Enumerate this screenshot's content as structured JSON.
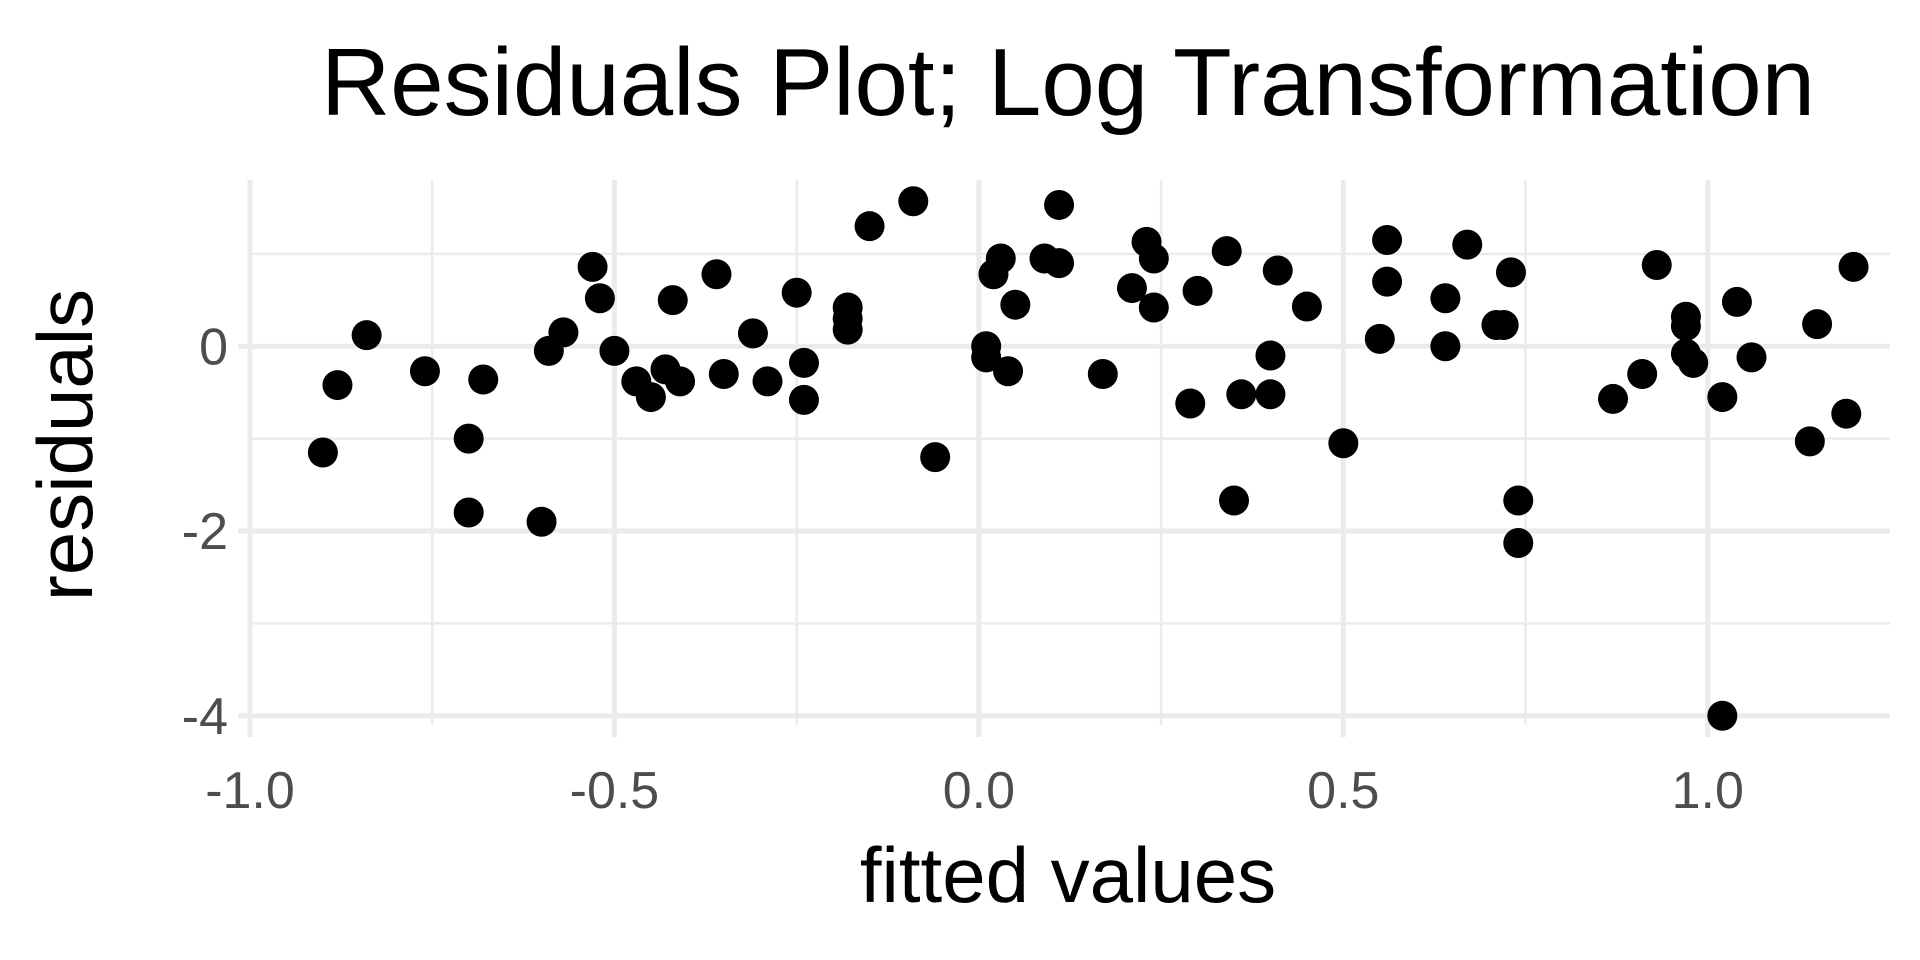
{
  "chart_data": {
    "type": "scatter",
    "title": "Residuals Plot; Log Transformation",
    "xlabel": "fitted values",
    "ylabel": "residuals",
    "xlim": [
      -1.0,
      1.25
    ],
    "ylim": [
      -4.1,
      1.8
    ],
    "x_ticks": [
      -1.0,
      -0.5,
      0.0,
      0.5,
      1.0
    ],
    "x_tick_labels": [
      "-1.0",
      "-0.5",
      "0.0",
      "0.5",
      "1.0"
    ],
    "y_ticks": [
      -4,
      -2,
      0
    ],
    "y_tick_labels": [
      "-4",
      "-2",
      "0"
    ],
    "x_minor_ticks": [
      -0.75,
      -0.25,
      0.25,
      0.75
    ],
    "y_minor_ticks": [
      -3,
      -1,
      1
    ],
    "grid": true,
    "point_color": "#000000",
    "grid_color": "#ebebeb",
    "series": [
      {
        "points": [
          {
            "x": -0.9,
            "y": -1.15
          },
          {
            "x": -0.88,
            "y": -0.42
          },
          {
            "x": -0.84,
            "y": 0.12
          },
          {
            "x": -0.76,
            "y": -0.27
          },
          {
            "x": -0.7,
            "y": -1.0
          },
          {
            "x": -0.7,
            "y": -1.8
          },
          {
            "x": -0.68,
            "y": -0.36
          },
          {
            "x": -0.6,
            "y": -1.9
          },
          {
            "x": -0.59,
            "y": -0.05
          },
          {
            "x": -0.57,
            "y": 0.15
          },
          {
            "x": -0.53,
            "y": 0.86
          },
          {
            "x": -0.52,
            "y": 0.52
          },
          {
            "x": -0.5,
            "y": -0.05
          },
          {
            "x": -0.47,
            "y": -0.38
          },
          {
            "x": -0.45,
            "y": -0.55
          },
          {
            "x": -0.43,
            "y": -0.25
          },
          {
            "x": -0.42,
            "y": 0.5
          },
          {
            "x": -0.41,
            "y": -0.38
          },
          {
            "x": -0.36,
            "y": 0.78
          },
          {
            "x": -0.35,
            "y": -0.3
          },
          {
            "x": -0.31,
            "y": 0.14
          },
          {
            "x": -0.29,
            "y": -0.38
          },
          {
            "x": -0.25,
            "y": 0.58
          },
          {
            "x": -0.24,
            "y": -0.18
          },
          {
            "x": -0.24,
            "y": -0.58
          },
          {
            "x": -0.18,
            "y": 0.42
          },
          {
            "x": -0.18,
            "y": 0.3
          },
          {
            "x": -0.18,
            "y": 0.18
          },
          {
            "x": -0.15,
            "y": 1.3
          },
          {
            "x": -0.09,
            "y": 1.57
          },
          {
            "x": -0.06,
            "y": -1.2
          },
          {
            "x": 0.01,
            "y": 0.0
          },
          {
            "x": 0.01,
            "y": -0.12
          },
          {
            "x": 0.02,
            "y": 0.78
          },
          {
            "x": 0.03,
            "y": 0.95
          },
          {
            "x": 0.04,
            "y": -0.27
          },
          {
            "x": 0.05,
            "y": 0.45
          },
          {
            "x": 0.09,
            "y": 0.95
          },
          {
            "x": 0.11,
            "y": 0.9
          },
          {
            "x": 0.11,
            "y": 1.53
          },
          {
            "x": 0.17,
            "y": -0.3
          },
          {
            "x": 0.21,
            "y": 0.63
          },
          {
            "x": 0.23,
            "y": 1.13
          },
          {
            "x": 0.24,
            "y": 0.95
          },
          {
            "x": 0.24,
            "y": 0.42
          },
          {
            "x": 0.29,
            "y": -0.62
          },
          {
            "x": 0.3,
            "y": 0.6
          },
          {
            "x": 0.34,
            "y": 1.03
          },
          {
            "x": 0.35,
            "y": -1.67
          },
          {
            "x": 0.36,
            "y": -0.52
          },
          {
            "x": 0.4,
            "y": -0.52
          },
          {
            "x": 0.4,
            "y": -0.1
          },
          {
            "x": 0.41,
            "y": 0.82
          },
          {
            "x": 0.45,
            "y": 0.43
          },
          {
            "x": 0.5,
            "y": -1.05
          },
          {
            "x": 0.55,
            "y": 0.08
          },
          {
            "x": 0.56,
            "y": 1.15
          },
          {
            "x": 0.56,
            "y": 0.7
          },
          {
            "x": 0.64,
            "y": 0.52
          },
          {
            "x": 0.64,
            "y": 0.0
          },
          {
            "x": 0.67,
            "y": 1.1
          },
          {
            "x": 0.71,
            "y": 0.23
          },
          {
            "x": 0.72,
            "y": 0.23
          },
          {
            "x": 0.73,
            "y": 0.8
          },
          {
            "x": 0.74,
            "y": -1.67
          },
          {
            "x": 0.74,
            "y": -2.13
          },
          {
            "x": 0.87,
            "y": -0.57
          },
          {
            "x": 0.91,
            "y": -0.3
          },
          {
            "x": 0.93,
            "y": 0.88
          },
          {
            "x": 0.97,
            "y": 0.22
          },
          {
            "x": 0.97,
            "y": -0.08
          },
          {
            "x": 0.97,
            "y": 0.32
          },
          {
            "x": 0.98,
            "y": -0.18
          },
          {
            "x": 1.02,
            "y": -0.55
          },
          {
            "x": 1.04,
            "y": 0.48
          },
          {
            "x": 1.06,
            "y": -0.12
          },
          {
            "x": 1.02,
            "y": -4.0
          },
          {
            "x": 1.14,
            "y": -1.03
          },
          {
            "x": 1.15,
            "y": 0.24
          },
          {
            "x": 1.19,
            "y": -0.73
          },
          {
            "x": 1.2,
            "y": 0.86
          }
        ]
      }
    ]
  }
}
